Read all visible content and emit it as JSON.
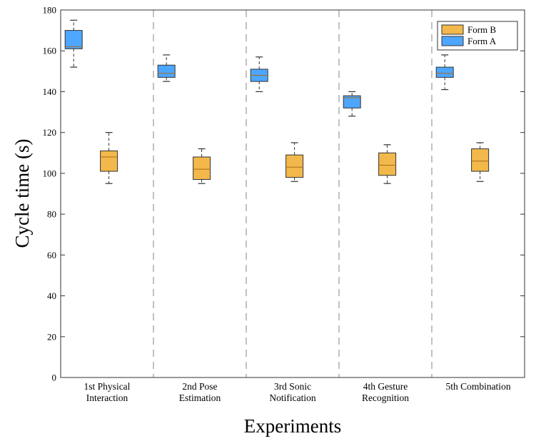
{
  "chart_data": {
    "type": "box",
    "title": "",
    "xlabel": "Experiments",
    "ylabel": "Cycle time (s)",
    "ylim": [
      0,
      180
    ],
    "yticks": [
      0,
      20,
      40,
      60,
      80,
      100,
      120,
      140,
      160,
      180
    ],
    "categories": [
      [
        "1st Physical",
        "Interaction"
      ],
      [
        "2nd Pose",
        "Estimation"
      ],
      [
        "3rd Sonic",
        "Notification"
      ],
      [
        "4th Gesture",
        "Recognition"
      ],
      [
        "5th Combination"
      ]
    ],
    "legend": {
      "position": "top-right",
      "entries": [
        "Form B",
        "Form A"
      ]
    },
    "series": [
      {
        "name": "Form A",
        "color": "#4da6ff",
        "stats": [
          {
            "min": 152,
            "q1": 161,
            "median": 162,
            "q3": 170,
            "max": 175
          },
          {
            "min": 145,
            "q1": 147,
            "median": 149,
            "q3": 153,
            "max": 158
          },
          {
            "min": 140,
            "q1": 145,
            "median": 148,
            "q3": 151,
            "max": 157
          },
          {
            "min": 128,
            "q1": 132,
            "median": 137,
            "q3": 138,
            "max": 140
          },
          {
            "min": 141,
            "q1": 147,
            "median": 149,
            "q3": 152,
            "max": 158
          }
        ]
      },
      {
        "name": "Form B",
        "color": "#f2b84b",
        "stats": [
          {
            "min": 95,
            "q1": 101,
            "median": 108,
            "q3": 111,
            "max": 120
          },
          {
            "min": 95,
            "q1": 97,
            "median": 102,
            "q3": 108,
            "max": 112
          },
          {
            "min": 96,
            "q1": 98,
            "median": 103,
            "q3": 109,
            "max": 115
          },
          {
            "min": 95,
            "q1": 99,
            "median": 104,
            "q3": 110,
            "max": 114
          },
          {
            "min": 96,
            "q1": 101,
            "median": 106,
            "q3": 112,
            "max": 115
          }
        ]
      }
    ]
  }
}
